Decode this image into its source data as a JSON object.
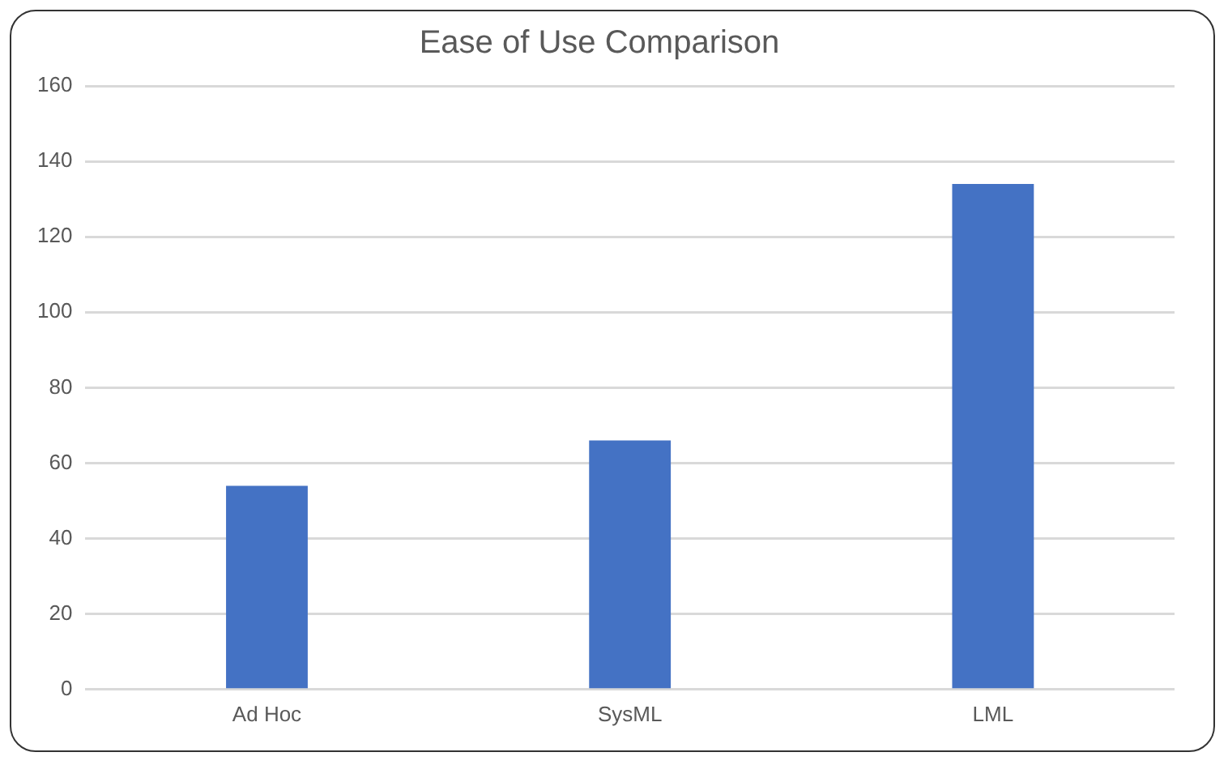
{
  "chart_data": {
    "type": "bar",
    "title": "Ease of Use Comparison",
    "categories": [
      "Ad Hoc",
      "SysML",
      "LML"
    ],
    "values": [
      54,
      66,
      134
    ],
    "color": "#4472c4",
    "ylim": [
      0,
      160
    ],
    "yticks": [
      0,
      20,
      40,
      60,
      80,
      100,
      120,
      140,
      160
    ],
    "grid": "y"
  }
}
